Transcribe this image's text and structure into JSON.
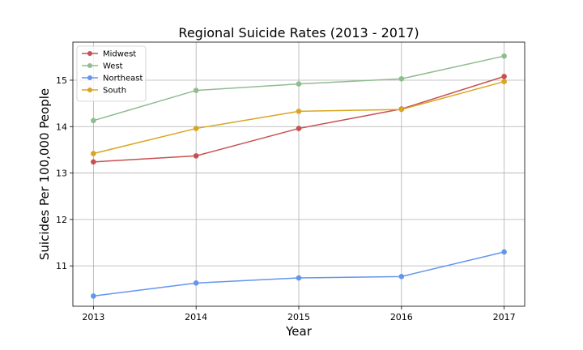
{
  "chart_data": {
    "type": "line",
    "title": "Regional Suicide Rates (2013 - 2017)",
    "xlabel": "Year",
    "ylabel": "Suicides Per 100,000 People",
    "x": [
      2013,
      2014,
      2015,
      2016,
      2017
    ],
    "x_tick_labels": [
      "2013",
      "2014",
      "2015",
      "2016",
      "2017"
    ],
    "y_ticks": [
      11,
      12,
      13,
      14,
      15
    ],
    "y_tick_labels": [
      "11",
      "12",
      "13",
      "14",
      "15"
    ],
    "xlim": [
      2012.8,
      2017.2
    ],
    "ylim": [
      10.13,
      15.82
    ],
    "grid": true,
    "legend_position": "upper-left",
    "series": [
      {
        "name": "Midwest",
        "color": "#c75151",
        "values": [
          13.24,
          13.37,
          13.96,
          14.38,
          15.08
        ]
      },
      {
        "name": "West",
        "color": "#8fbc8f",
        "values": [
          14.13,
          14.78,
          14.92,
          15.03,
          15.52
        ]
      },
      {
        "name": "Northeast",
        "color": "#6495ed",
        "values": [
          10.35,
          10.63,
          10.74,
          10.77,
          11.3
        ]
      },
      {
        "name": "South",
        "color": "#daa520",
        "values": [
          13.42,
          13.96,
          14.33,
          14.37,
          14.97
        ]
      }
    ]
  }
}
